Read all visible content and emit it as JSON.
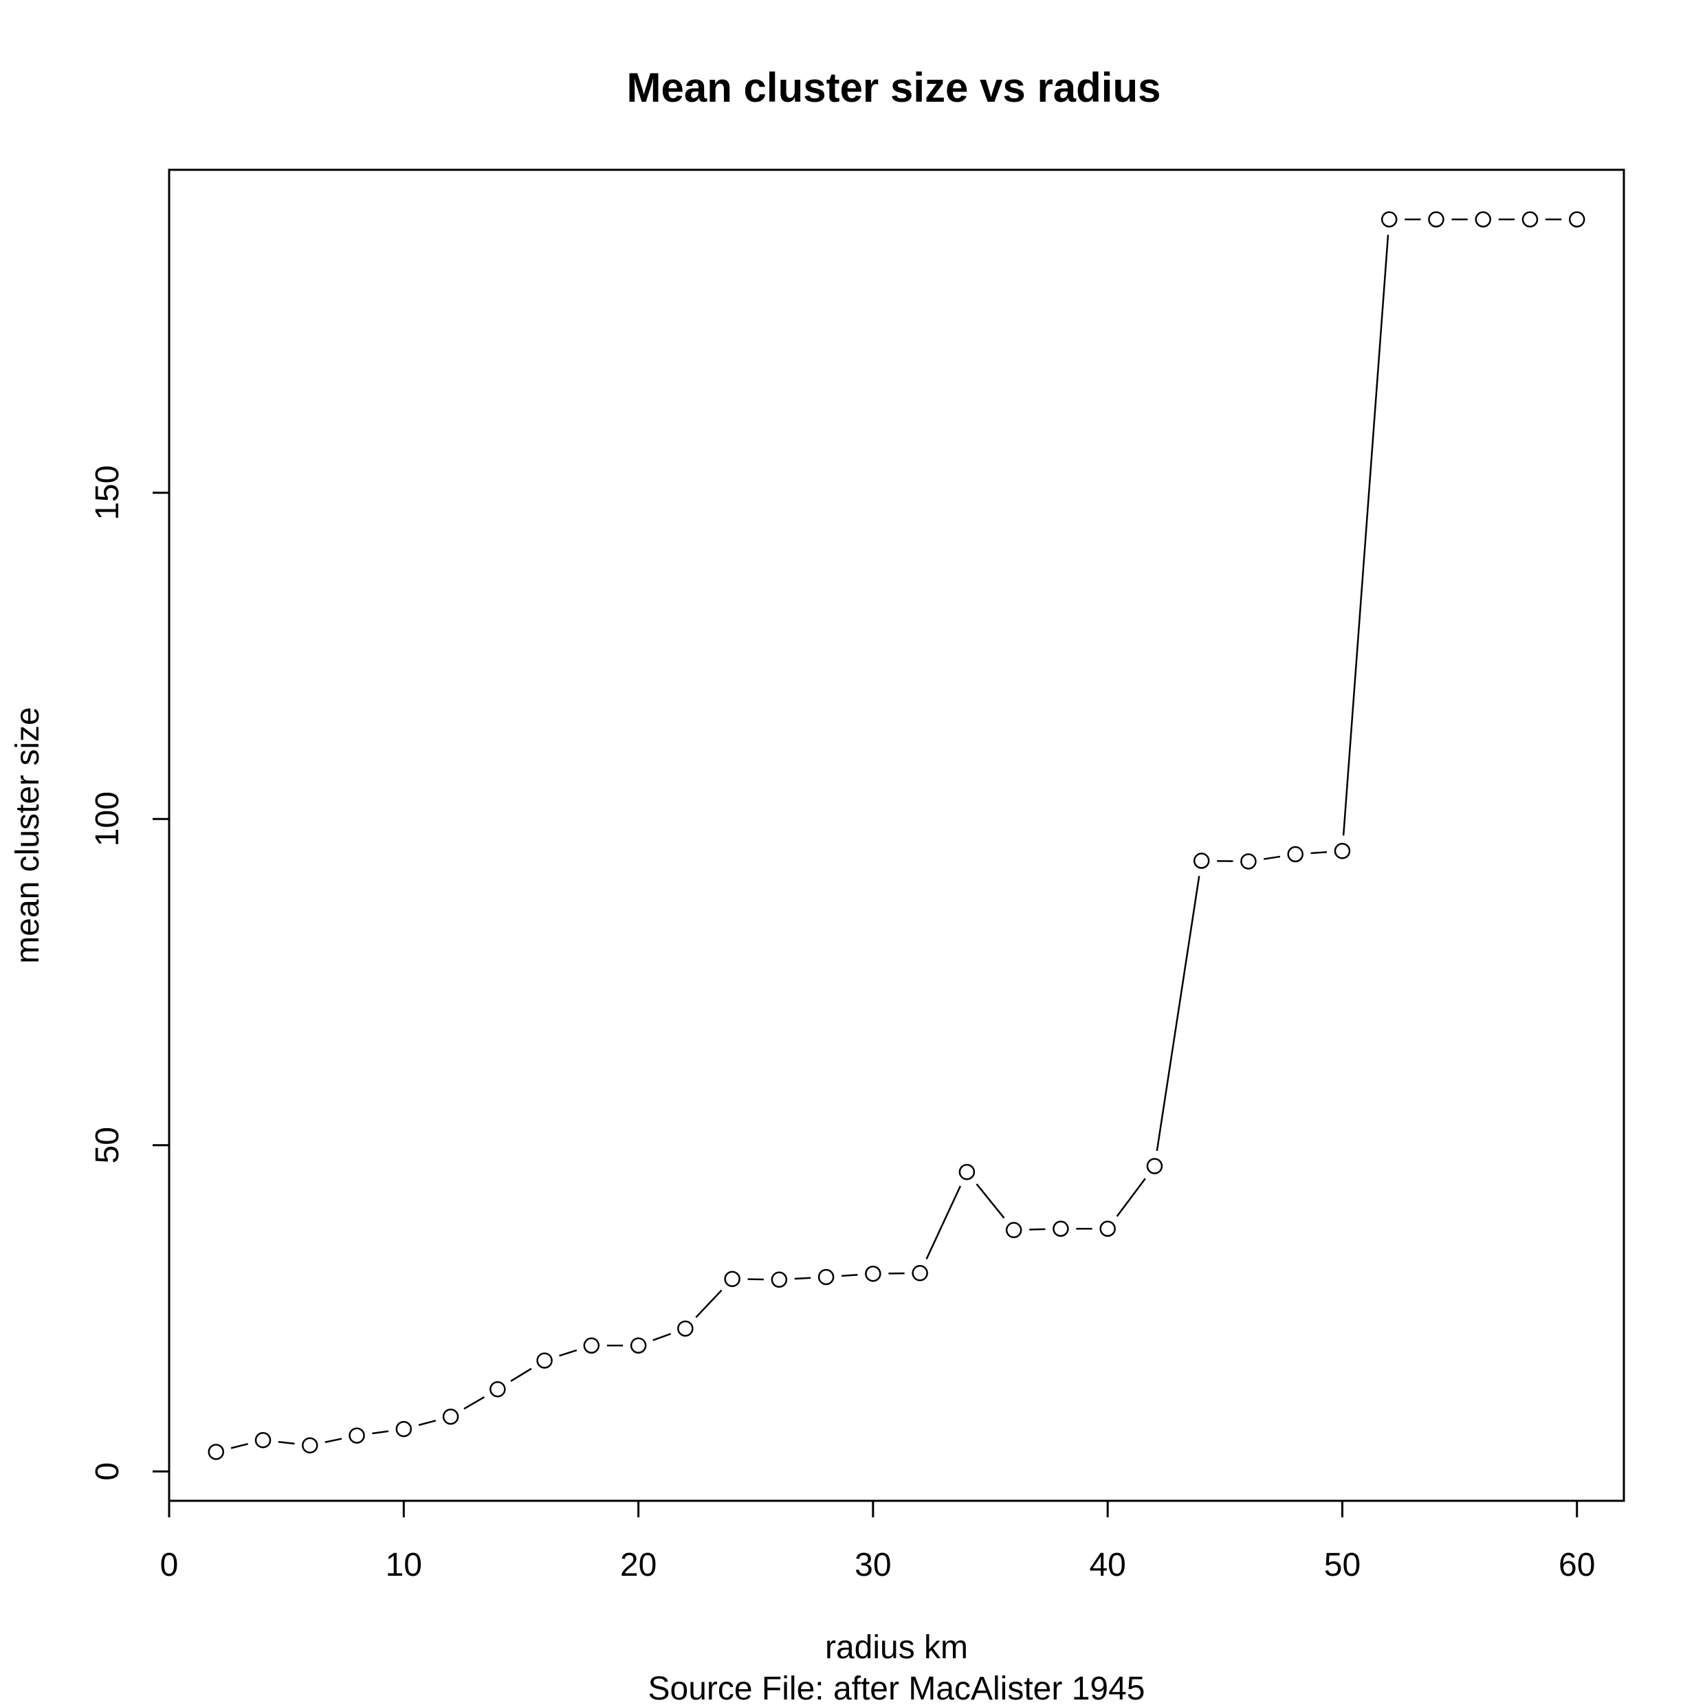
{
  "chart_data": {
    "type": "line",
    "title": "Mean cluster size vs radius",
    "xlabel": "radius  km",
    "ylabel": "mean cluster size",
    "subtitle": "Source File:  after MacAlister 1945",
    "xlim": [
      0,
      62
    ],
    "ylim": [
      -4.5,
      199.5
    ],
    "x_ticks": [
      0,
      10,
      20,
      30,
      40,
      50,
      60
    ],
    "y_ticks": [
      0,
      50,
      100,
      150
    ],
    "grid": false,
    "legend": "none",
    "marker": "open-circle",
    "series": [
      {
        "x": [
          2,
          4,
          6,
          8,
          10,
          12,
          14,
          16,
          18,
          20,
          22,
          24,
          26,
          28,
          30,
          32,
          34,
          36,
          38,
          40,
          42,
          44,
          46,
          48,
          50,
          52,
          54,
          56,
          58,
          60
        ],
        "y": [
          3.0,
          4.8,
          4.0,
          5.5,
          6.5,
          8.4,
          12.6,
          17.0,
          19.3,
          19.3,
          21.9,
          29.5,
          29.4,
          29.8,
          30.3,
          30.4,
          45.9,
          37.0,
          37.2,
          37.2,
          46.8,
          93.6,
          93.5,
          94.6,
          95.1,
          191.9,
          191.9,
          191.9,
          191.9,
          191.9
        ]
      }
    ]
  }
}
